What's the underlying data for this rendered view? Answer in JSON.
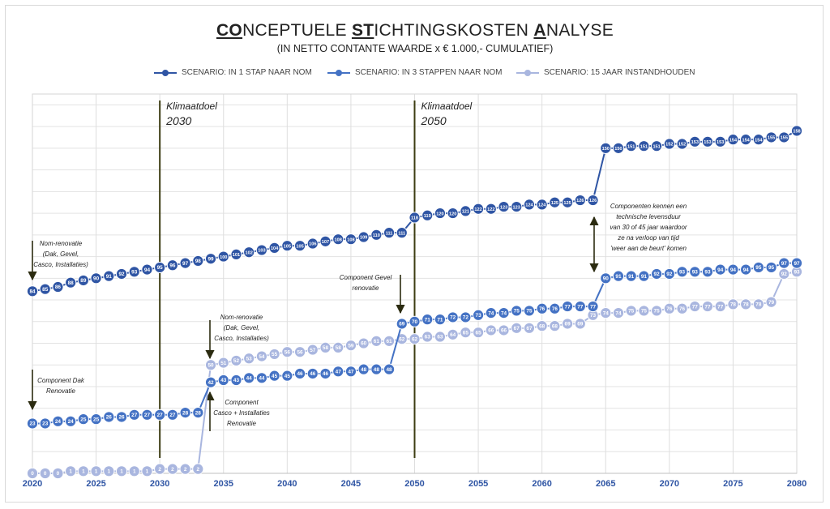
{
  "title": {
    "parts": [
      {
        "t": "CO",
        "u": true
      },
      {
        "t": "NCEPTUELE ",
        "u": false
      },
      {
        "t": "ST",
        "u": true
      },
      {
        "t": "ICHTINGSKOSTEN ",
        "u": false
      },
      {
        "t": "A",
        "u": true
      },
      {
        "t": "NALYSE",
        "u": false
      }
    ]
  },
  "subtitle": "(IN NETTO CONTANTE WAARDE x € 1.000,- CUMULATIEF)",
  "legend": [
    {
      "name": "SCENARIO: IN 1 STAP NAAR NOM",
      "color": "#2f55a4"
    },
    {
      "name": "SCENARIO: IN 3 STAPPEN NAAR NOM",
      "color": "#4472c4"
    },
    {
      "name": "SCENARIO: 15 JAAR INSTANDHOUDEN",
      "color": "#a9b6df"
    }
  ],
  "chart_data": {
    "type": "line",
    "x": [
      2020,
      2021,
      2022,
      2023,
      2024,
      2025,
      2026,
      2027,
      2028,
      2029,
      2030,
      2031,
      2032,
      2033,
      2034,
      2035,
      2036,
      2037,
      2038,
      2039,
      2040,
      2041,
      2042,
      2043,
      2044,
      2045,
      2046,
      2047,
      2048,
      2049,
      2050,
      2051,
      2052,
      2053,
      2054,
      2055,
      2056,
      2057,
      2058,
      2059,
      2060,
      2061,
      2062,
      2063,
      2064,
      2065,
      2066,
      2067,
      2068,
      2069,
      2070,
      2071,
      2072,
      2073,
      2074,
      2075,
      2076,
      2077,
      2078,
      2079,
      2080
    ],
    "xticks": [
      2020,
      2025,
      2030,
      2035,
      2040,
      2045,
      2050,
      2055,
      2060,
      2065,
      2070,
      2075,
      2080
    ],
    "xlim": [
      2020,
      2080
    ],
    "ylim": [
      0,
      175
    ],
    "grid": true,
    "series": [
      {
        "name": "SCENARIO: IN 1 STAP NAAR NOM",
        "color": "#2f55a4",
        "values": [
          84,
          85,
          86,
          88,
          89,
          90,
          91,
          92,
          93,
          94,
          95,
          96,
          97,
          98,
          99,
          100,
          101,
          102,
          103,
          104,
          105,
          105,
          106,
          107,
          108,
          108,
          109,
          110,
          111,
          111,
          118,
          119,
          120,
          120,
          121,
          122,
          122,
          123,
          123,
          124,
          124,
          125,
          125,
          126,
          126,
          150,
          150,
          151,
          151,
          151,
          152,
          152,
          153,
          153,
          153,
          154,
          154,
          154,
          155,
          155,
          158
        ]
      },
      {
        "name": "SCENARIO: IN 3 STAPPEN NAAR NOM",
        "color": "#4472c4",
        "values": [
          23,
          23,
          24,
          24,
          25,
          25,
          26,
          26,
          27,
          27,
          27,
          27,
          28,
          28,
          42,
          43,
          43,
          44,
          44,
          45,
          45,
          46,
          46,
          46,
          47,
          47,
          48,
          48,
          48,
          69,
          70,
          71,
          71,
          72,
          72,
          73,
          74,
          74,
          75,
          75,
          76,
          76,
          77,
          77,
          77,
          90,
          91,
          91,
          91,
          92,
          92,
          93,
          93,
          93,
          94,
          94,
          94,
          95,
          95,
          97,
          97
        ]
      },
      {
        "name": "SCENARIO: 15 JAAR INSTANDHOUDEN",
        "color": "#a9b6df",
        "values": [
          0,
          0,
          0,
          1,
          1,
          1,
          1,
          1,
          1,
          1,
          2,
          2,
          2,
          2,
          50,
          51,
          52,
          53,
          54,
          55,
          56,
          56,
          57,
          58,
          58,
          59,
          60,
          61,
          61,
          62,
          62,
          63,
          63,
          64,
          65,
          65,
          66,
          66,
          67,
          67,
          68,
          68,
          69,
          69,
          73,
          74,
          74,
          75,
          75,
          75,
          76,
          76,
          77,
          77,
          77,
          78,
          78,
          78,
          79,
          92,
          93
        ]
      }
    ],
    "reference_lines": [
      {
        "x": 2030,
        "label": [
          "Klimaatdoel",
          "2030"
        ]
      },
      {
        "x": 2050,
        "label": [
          "Klimaatdoel",
          "2050"
        ]
      }
    ],
    "annotations": [
      {
        "lines": [
          "Nom-renovatie",
          "(Dak, Gevel,",
          "Casco, Installaties)"
        ],
        "x": 2020,
        "y": 84,
        "arrow": "down"
      },
      {
        "lines": [
          "Component Dak",
          "Renovatie"
        ],
        "x": 2020,
        "y": 23,
        "arrow": "down"
      },
      {
        "lines": [
          "Nom-renovatie",
          "(Dak, Gevel,",
          "Casco, Installaties)"
        ],
        "x": 2034,
        "y": 50,
        "arrow": "down"
      },
      {
        "lines": [
          "Component",
          "Casco + Installaties",
          "Renovatie"
        ],
        "x": 2034,
        "y": 42,
        "arrow": "up"
      },
      {
        "lines": [
          "Component Gevel",
          "renovatie"
        ],
        "x": 2049,
        "y": 69,
        "arrow": "down"
      },
      {
        "lines": [
          "Componenten kennen een",
          "technische levensduur",
          "van 30 of 45 jaar waardoor",
          "ze na verloop van tijd",
          "'weer aan de beurt' komen"
        ],
        "x": 2064,
        "y": 126,
        "arrow": "both"
      }
    ]
  }
}
